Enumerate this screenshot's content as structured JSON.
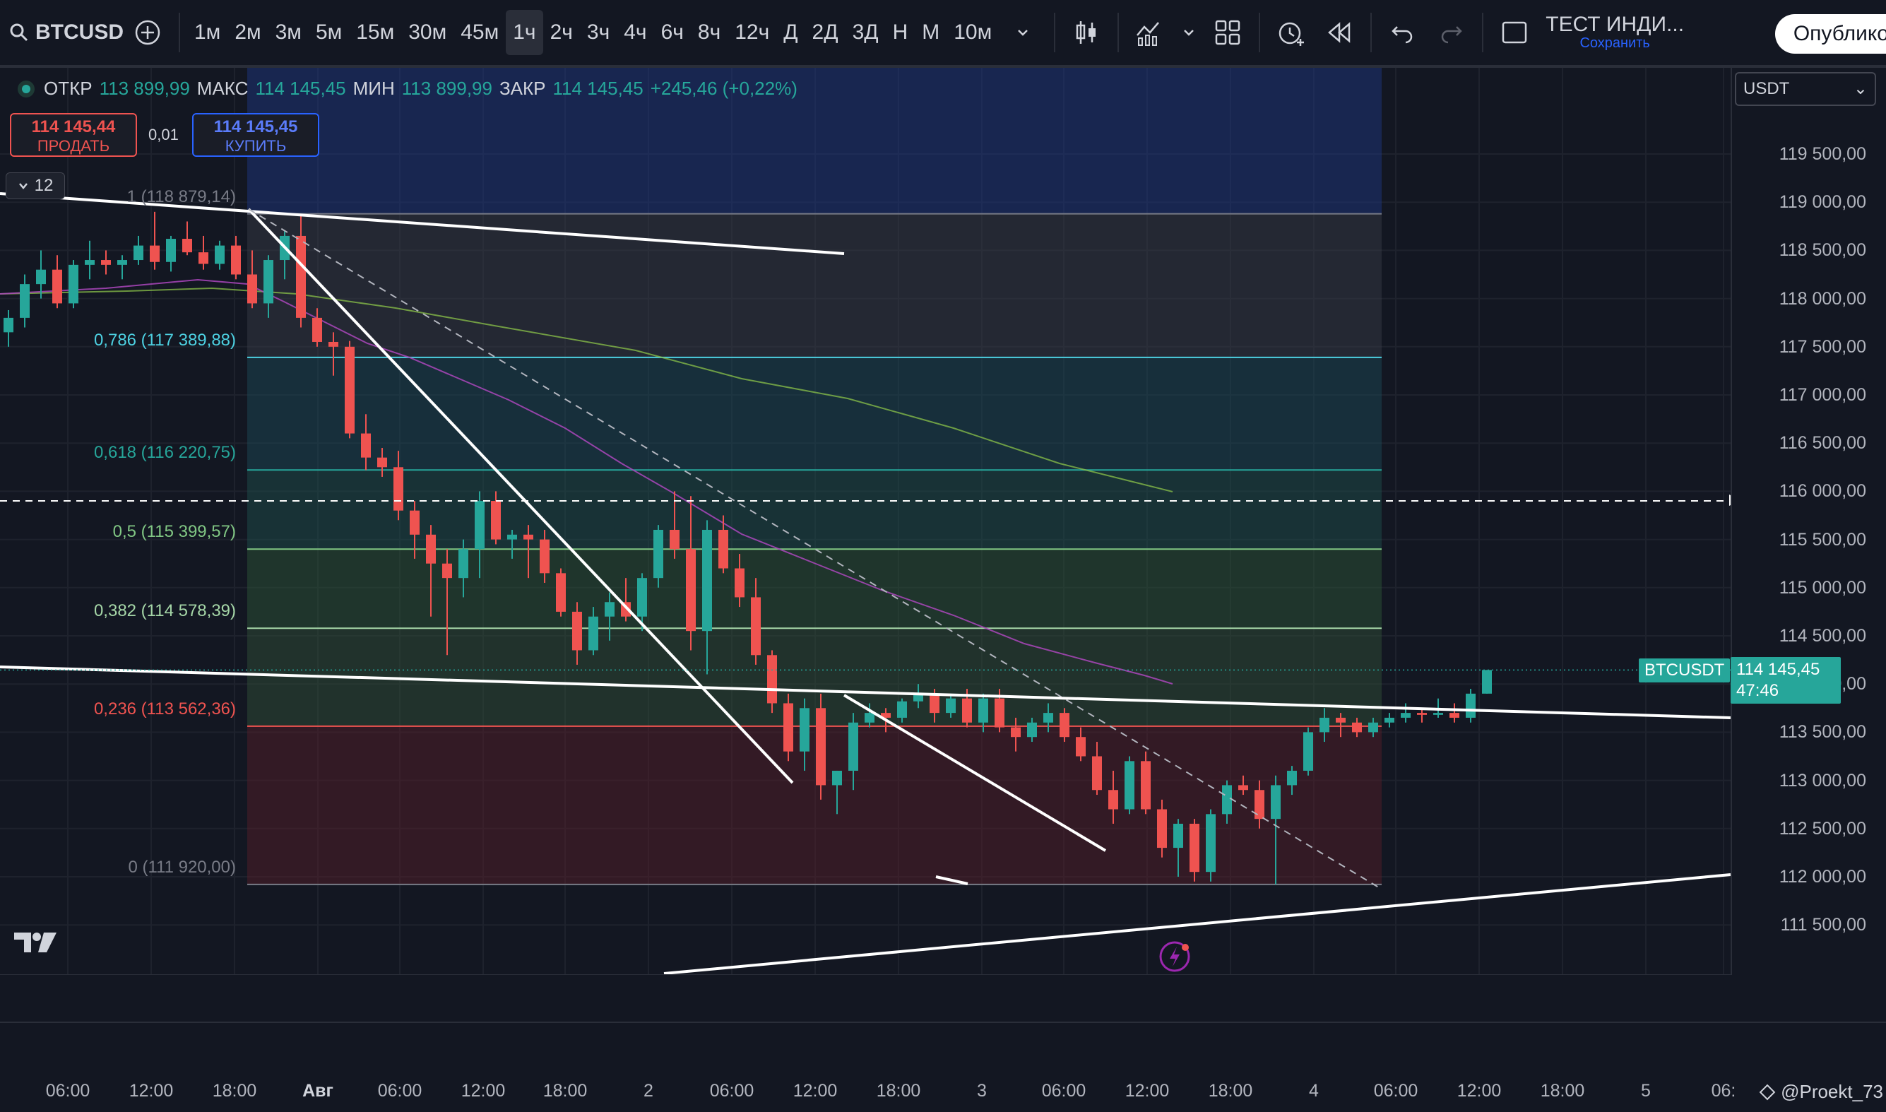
{
  "toolbar": {
    "symbol": "BTCUSD",
    "timeframes": [
      "1м",
      "2м",
      "3м",
      "5м",
      "15м",
      "30м",
      "45м",
      "1ч",
      "2ч",
      "3ч",
      "4ч",
      "6ч",
      "8ч",
      "12ч",
      "Д",
      "2Д",
      "3Д",
      "Н",
      "М",
      "10м"
    ],
    "active_timeframe": "1ч",
    "layout_name": "ТЕСТ ИНДИ...",
    "save_label": "Сохранить",
    "publish_label": "Опублико"
  },
  "legend": {
    "open_label": "ОТКР",
    "open": "113 899,99",
    "high_label": "МАКС",
    "high": "114 145,45",
    "low_label": "МИН",
    "low": "113 899,99",
    "close_label": "ЗАКР",
    "close": "114 145,45",
    "change": "+245,46 (+0,22%)"
  },
  "trade": {
    "sell_price": "114 145,44",
    "sell_label": "ПРОДАТЬ",
    "spread": "0,01",
    "buy_price": "114 145,45",
    "buy_label": "КУПИТЬ"
  },
  "indicators_count": "12",
  "currency": "USDT",
  "price_axis": [
    "119 500,00",
    "119 000,00",
    "118 500,00",
    "118 000,00",
    "117 500,00",
    "117 000,00",
    "116 500,00",
    "116 000,00",
    "115 500,00",
    "115 000,00",
    "114 500,00",
    "114 000,00",
    "113 500,00",
    "113 000,00",
    "112 500,00",
    "112 000,00",
    "111 500,00"
  ],
  "time_axis": [
    {
      "t": "06:00",
      "b": false
    },
    {
      "t": "12:00",
      "b": false
    },
    {
      "t": "18:00",
      "b": false
    },
    {
      "t": "Авг",
      "b": true
    },
    {
      "t": "06:00",
      "b": false
    },
    {
      "t": "12:00",
      "b": false
    },
    {
      "t": "18:00",
      "b": false
    },
    {
      "t": "2",
      "b": false
    },
    {
      "t": "06:00",
      "b": false
    },
    {
      "t": "12:00",
      "b": false
    },
    {
      "t": "18:00",
      "b": false
    },
    {
      "t": "3",
      "b": false
    },
    {
      "t": "06:00",
      "b": false
    },
    {
      "t": "12:00",
      "b": false
    },
    {
      "t": "18:00",
      "b": false
    },
    {
      "t": "4",
      "b": false
    },
    {
      "t": "06:00",
      "b": false
    },
    {
      "t": "12:00",
      "b": false
    },
    {
      "t": "18:00",
      "b": false
    },
    {
      "t": "5",
      "b": false
    },
    {
      "t": "06:",
      "b": false
    }
  ],
  "fib_levels": [
    {
      "label": "1 (118 879,14)",
      "price": 118879.14,
      "color": "#787b86"
    },
    {
      "label": "0,786 (117 389,88)",
      "price": 117389.88,
      "color": "#4dd0e1"
    },
    {
      "label": "0,618 (116 220,75)",
      "price": 116220.75,
      "color": "#26a69a"
    },
    {
      "label": "0,5 (115 399,57)",
      "price": 115399.57,
      "color": "#81c784"
    },
    {
      "label": "0,382 (114 578,39)",
      "price": 114578.39,
      "color": "#a5d6a7"
    },
    {
      "label": "0,236 (113 562,36)",
      "price": 113562.36,
      "color": "#ef5350"
    },
    {
      "label": "0 (111 920,00)",
      "price": 111920.0,
      "color": "#787b86"
    }
  ],
  "last_price": {
    "symbol": "BTCUSDT",
    "price": "114 145,45",
    "countdown": "47:46",
    "value": 114145.45
  },
  "crosshair_price": 115900,
  "colors": {
    "up": "#26a69a",
    "down": "#ef5350",
    "bg": "#131722"
  },
  "candles": [
    [
      117650,
      117880,
      117500,
      117800
    ],
    [
      117800,
      118250,
      117700,
      118150
    ],
    [
      118150,
      118500,
      118000,
      118300
    ],
    [
      118300,
      118450,
      117900,
      117950
    ],
    [
      117950,
      118400,
      117900,
      118350
    ],
    [
      118350,
      118600,
      118200,
      118400
    ],
    [
      118400,
      118500,
      118250,
      118350
    ],
    [
      118350,
      118450,
      118200,
      118400
    ],
    [
      118400,
      118650,
      118350,
      118550
    ],
    [
      118550,
      118900,
      118300,
      118380
    ],
    [
      118380,
      118650,
      118280,
      118620
    ],
    [
      118620,
      118800,
      118450,
      118480
    ],
    [
      118480,
      118650,
      118300,
      118360
    ],
    [
      118360,
      118600,
      118300,
      118550
    ],
    [
      118550,
      118650,
      118200,
      118250
    ],
    [
      118250,
      118500,
      117900,
      117950
    ],
    [
      117950,
      118450,
      117800,
      118400
    ],
    [
      118400,
      118700,
      118200,
      118650
    ],
    [
      118650,
      118880,
      117700,
      117800
    ],
    [
      117800,
      117900,
      117500,
      117550
    ],
    [
      117550,
      117650,
      117200,
      117500
    ],
    [
      117500,
      117560,
      116550,
      116600
    ],
    [
      116600,
      116800,
      116220,
      116350
    ],
    [
      116350,
      116450,
      116150,
      116250
    ],
    [
      116250,
      116420,
      115700,
      115800
    ],
    [
      115800,
      115900,
      115300,
      115550
    ],
    [
      115550,
      115650,
      114700,
      115250
    ],
    [
      115250,
      115400,
      114300,
      115100
    ],
    [
      115100,
      115500,
      114900,
      115400
    ],
    [
      115400,
      116000,
      115100,
      115900
    ],
    [
      115900,
      116000,
      115450,
      115500
    ],
    [
      115500,
      115600,
      115300,
      115550
    ],
    [
      115550,
      115650,
      115100,
      115500
    ],
    [
      115500,
      115600,
      115050,
      115150
    ],
    [
      115150,
      115200,
      114700,
      114750
    ],
    [
      114750,
      114850,
      114200,
      114350
    ],
    [
      114350,
      114800,
      114300,
      114700
    ],
    [
      114700,
      114950,
      114450,
      114850
    ],
    [
      114850,
      115100,
      114650,
      114700
    ],
    [
      114700,
      115150,
      114550,
      115100
    ],
    [
      115100,
      115650,
      115000,
      115600
    ],
    [
      115600,
      116000,
      115300,
      115400
    ],
    [
      115400,
      115950,
      114350,
      114550
    ],
    [
      114550,
      115700,
      114100,
      115600
    ],
    [
      115600,
      115750,
      115150,
      115200
    ],
    [
      115200,
      115350,
      114800,
      114900
    ],
    [
      114900,
      115100,
      114200,
      114300
    ],
    [
      114300,
      114350,
      113700,
      113800
    ],
    [
      113800,
      113900,
      113200,
      113300
    ],
    [
      113300,
      113850,
      113100,
      113750
    ],
    [
      113750,
      113900,
      112800,
      112950
    ],
    [
      112950,
      113100,
      112650,
      113100
    ],
    [
      113100,
      113700,
      112900,
      113600
    ],
    [
      113600,
      113800,
      113550,
      113700
    ],
    [
      113700,
      113750,
      113500,
      113650
    ],
    [
      113650,
      113850,
      113600,
      113820
    ],
    [
      113820,
      114000,
      113750,
      113900
    ],
    [
      113900,
      113950,
      113600,
      113700
    ],
    [
      113700,
      113900,
      113650,
      113850
    ],
    [
      113850,
      113950,
      113550,
      113600
    ],
    [
      113600,
      113900,
      113500,
      113850
    ],
    [
      113850,
      113950,
      113500,
      113550
    ],
    [
      113550,
      113650,
      113300,
      113450
    ],
    [
      113450,
      113650,
      113400,
      113600
    ],
    [
      113600,
      113800,
      113500,
      113700
    ],
    [
      113700,
      113750,
      113400,
      113450
    ],
    [
      113450,
      113550,
      113200,
      113250
    ],
    [
      113250,
      113400,
      112850,
      112900
    ],
    [
      112900,
      113100,
      112550,
      112700
    ],
    [
      112700,
      113250,
      112650,
      113200
    ],
    [
      113200,
      113300,
      112650,
      112700
    ],
    [
      112700,
      112800,
      112200,
      112300
    ],
    [
      112300,
      112600,
      112000,
      112550
    ],
    [
      112550,
      112600,
      111950,
      112050
    ],
    [
      112050,
      112700,
      111950,
      112650
    ],
    [
      112650,
      113000,
      112550,
      112950
    ],
    [
      112950,
      113050,
      112850,
      112900
    ],
    [
      112900,
      113000,
      112500,
      112600
    ],
    [
      112600,
      113050,
      111920,
      112950
    ],
    [
      112950,
      113150,
      112850,
      113100
    ],
    [
      113100,
      113550,
      113050,
      113500
    ],
    [
      113500,
      113750,
      113400,
      113650
    ],
    [
      113650,
      113700,
      113450,
      113600
    ],
    [
      113600,
      113650,
      113450,
      113500
    ],
    [
      113500,
      113650,
      113450,
      113600
    ],
    [
      113600,
      113700,
      113550,
      113650
    ],
    [
      113650,
      113800,
      113600,
      113700
    ],
    [
      113700,
      113750,
      113600,
      113680
    ],
    [
      113680,
      113850,
      113650,
      113700
    ],
    [
      113700,
      113800,
      113600,
      113650
    ],
    [
      113650,
      113950,
      113600,
      113900
    ],
    [
      113899.99,
      114145.45,
      113899.99,
      114145.45
    ]
  ]
}
